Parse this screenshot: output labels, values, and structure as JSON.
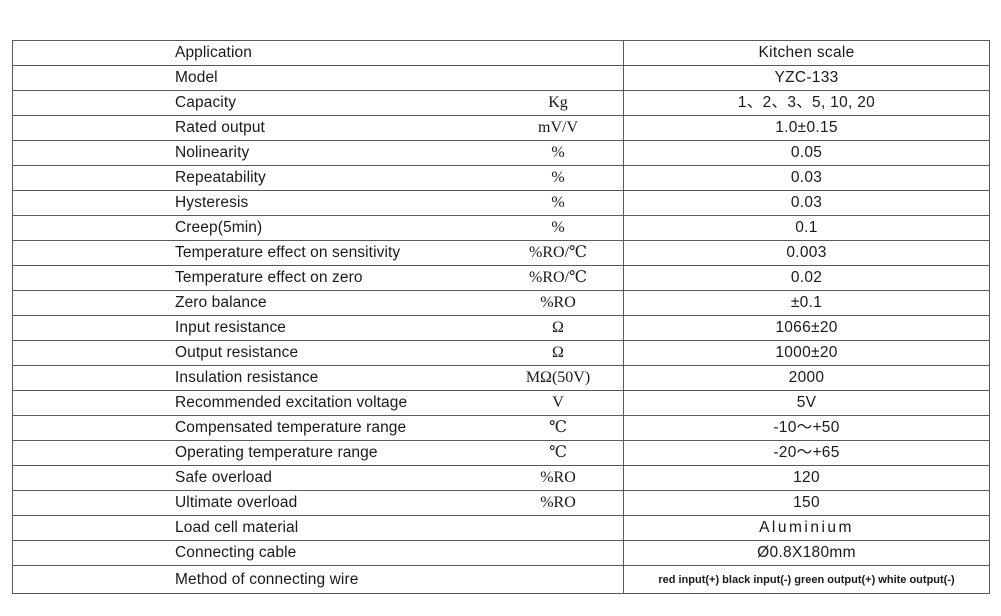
{
  "spec_table": {
    "rows": [
      {
        "parameter": "Application",
        "unit": "",
        "value": "Kitchen  scale"
      },
      {
        "parameter": "Model",
        "unit": "",
        "value": "YZC-133"
      },
      {
        "parameter": "Capacity",
        "unit": "Kg",
        "value": "1、2、3、5, 10, 20"
      },
      {
        "parameter": "Rated output",
        "unit": "mV/V",
        "value": "1.0±0.15"
      },
      {
        "parameter": "Nolinearity",
        "unit": "%",
        "value": "0.05"
      },
      {
        "parameter": "Repeatability",
        "unit": "%",
        "value": "0.03"
      },
      {
        "parameter": "Hysteresis",
        "unit": "%",
        "value": "0.03"
      },
      {
        "parameter": "Creep(5min)",
        "unit": "%",
        "value": "0.1"
      },
      {
        "parameter": "Temperature effect on sensitivity",
        "unit": "%RO/℃",
        "value": "0.003"
      },
      {
        "parameter": "Temperature effect on zero",
        "unit": "%RO/℃",
        "value": "0.02"
      },
      {
        "parameter": "Zero balance",
        "unit": "%RO",
        "value": "±0.1"
      },
      {
        "parameter": "Input resistance",
        "unit": "Ω",
        "value": "1066±20"
      },
      {
        "parameter": "Output resistance",
        "unit": "Ω",
        "value": "1000±20"
      },
      {
        "parameter": "Insulation resistance",
        "unit": "MΩ(50V)",
        "value": "2000"
      },
      {
        "parameter": "Recommended excitation voltage",
        "unit": "V",
        "value": "5V"
      },
      {
        "parameter": "Compensated temperature range",
        "unit": "℃",
        "value": "-10～+50"
      },
      {
        "parameter": "Operating temperature range",
        "unit": "℃",
        "value": "-20～+65"
      },
      {
        "parameter": "Safe overload",
        "unit": "%RO",
        "value": "120"
      },
      {
        "parameter": "Ultimate overload",
        "unit": "%RO",
        "value": "150"
      },
      {
        "parameter": "Load cell material",
        "unit": "",
        "value": "Aluminium"
      },
      {
        "parameter": "Connecting cable",
        "unit": "",
        "value": "Ø0.8X180mm"
      },
      {
        "parameter": "Method of connecting wire",
        "unit": "",
        "value": "red input(+) black input(-) green output(+) white output(-)"
      }
    ]
  }
}
